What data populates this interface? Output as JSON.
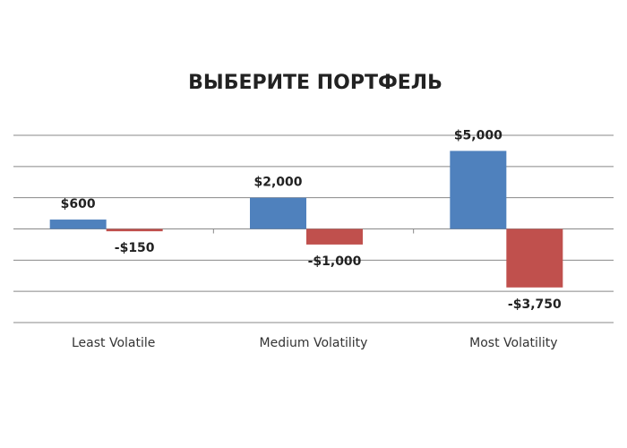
{
  "chart_data": {
    "type": "bar",
    "title": "ВЫБЕРИТЕ ПОРТФЕЛЬ",
    "categories": [
      "Least Volatile",
      "Medium Volatility",
      "Most Volatility"
    ],
    "series": [
      {
        "color": "#4f81bd",
        "values": [
          600,
          2000,
          5000
        ],
        "value_labels": [
          "$600",
          "$2,000",
          "$5,000"
        ]
      },
      {
        "color": "#c0504d",
        "values": [
          -150,
          -1000,
          -3750
        ],
        "value_labels": [
          "-$150",
          "-$1,000",
          "-$3,750"
        ]
      }
    ],
    "ylim": [
      -6000,
      6000
    ],
    "yticks": [
      -6000,
      -4000,
      -2000,
      0,
      2000,
      4000,
      6000
    ],
    "grid": true
  }
}
